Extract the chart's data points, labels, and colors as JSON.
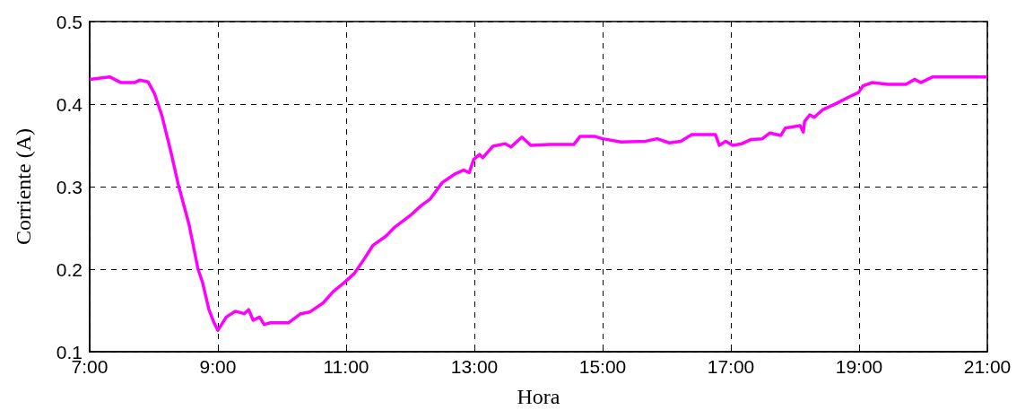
{
  "chart_data": {
    "type": "line",
    "xlabel": "Hora",
    "ylabel": "Corriente (A)",
    "x": [
      7.0,
      7.31,
      7.49,
      7.7,
      7.78,
      7.91,
      8.01,
      8.13,
      8.27,
      8.38,
      8.55,
      8.69,
      8.76,
      8.86,
      8.94,
      9.0,
      9.13,
      9.27,
      9.41,
      9.48,
      9.55,
      9.65,
      9.72,
      9.82,
      10.1,
      10.29,
      10.43,
      10.64,
      10.8,
      10.96,
      11.13,
      11.27,
      11.42,
      11.62,
      11.76,
      12.0,
      12.17,
      12.31,
      12.5,
      12.69,
      12.83,
      12.92,
      12.99,
      13.08,
      13.13,
      13.29,
      13.48,
      13.57,
      13.74,
      13.88,
      14.17,
      14.55,
      14.65,
      14.87,
      15.0,
      15.29,
      15.67,
      15.85,
      16.04,
      16.22,
      16.39,
      16.76,
      16.82,
      16.92,
      17.03,
      17.17,
      17.31,
      17.49,
      17.61,
      17.78,
      17.85,
      18.08,
      18.13,
      18.15,
      18.23,
      18.3,
      18.43,
      18.65,
      18.85,
      18.99,
      19.06,
      19.2,
      19.45,
      19.73,
      19.87,
      19.96,
      20.15,
      21.0
    ],
    "series": [
      {
        "color": "#ff00ff",
        "values": [
          0.43,
          0.433,
          0.426,
          0.426,
          0.429,
          0.427,
          0.413,
          0.385,
          0.341,
          0.303,
          0.254,
          0.2,
          0.184,
          0.151,
          0.135,
          0.126,
          0.142,
          0.149,
          0.146,
          0.151,
          0.138,
          0.142,
          0.133,
          0.135,
          0.135,
          0.146,
          0.148,
          0.159,
          0.173,
          0.183,
          0.195,
          0.211,
          0.229,
          0.24,
          0.251,
          0.265,
          0.277,
          0.285,
          0.305,
          0.315,
          0.32,
          0.317,
          0.333,
          0.339,
          0.335,
          0.349,
          0.352,
          0.348,
          0.36,
          0.35,
          0.351,
          0.351,
          0.361,
          0.361,
          0.358,
          0.354,
          0.355,
          0.358,
          0.353,
          0.355,
          0.363,
          0.363,
          0.35,
          0.355,
          0.35,
          0.352,
          0.357,
          0.358,
          0.365,
          0.362,
          0.371,
          0.374,
          0.366,
          0.379,
          0.387,
          0.384,
          0.393,
          0.401,
          0.409,
          0.414,
          0.422,
          0.426,
          0.424,
          0.424,
          0.43,
          0.426,
          0.433,
          0.433
        ]
      }
    ],
    "xlim": [
      7,
      21
    ],
    "xticks": [
      {
        "value": 7,
        "label": "7:00"
      },
      {
        "value": 9,
        "label": "9:00"
      },
      {
        "value": 11,
        "label": "11:00"
      },
      {
        "value": 13,
        "label": "13:00"
      },
      {
        "value": 15,
        "label": "15:00"
      },
      {
        "value": 17,
        "label": "17:00"
      },
      {
        "value": 19,
        "label": "19:00"
      },
      {
        "value": 21,
        "label": "21:00"
      }
    ],
    "ylim": [
      0.1,
      0.5
    ],
    "yticks": [
      0.1,
      0.2,
      0.3,
      0.4,
      0.5
    ],
    "grid": true,
    "marker": "none",
    "line_style": "solid"
  }
}
